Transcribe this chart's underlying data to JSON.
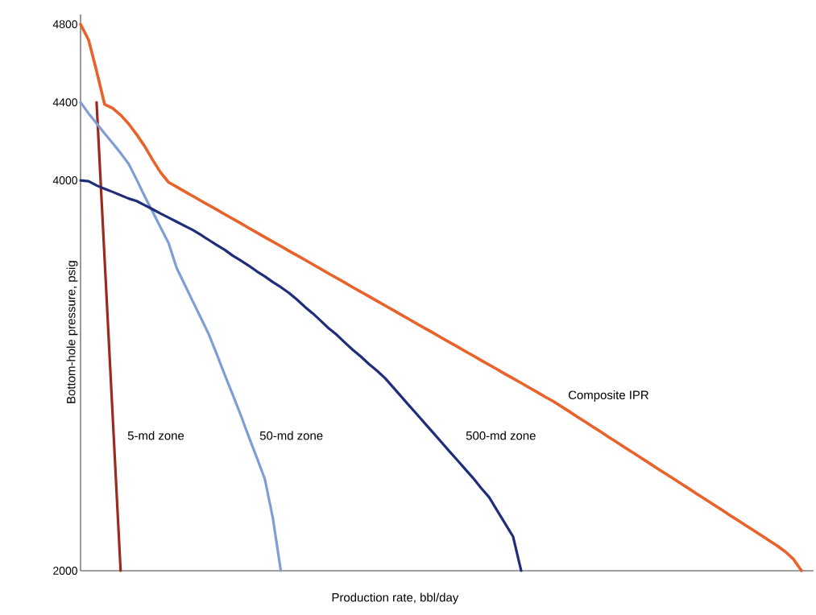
{
  "chart_data": {
    "type": "line",
    "xlabel": "Production rate, bbl/day",
    "ylabel": "Bottom-hole pressure, psig",
    "tick_labels": "y",
    "grid": false,
    "legend": false,
    "categories": [
      null,
      null,
      null,
      null,
      null,
      null,
      null,
      null,
      null,
      null,
      null,
      null,
      null,
      null,
      null,
      null,
      null,
      null,
      null,
      null,
      null,
      null,
      null,
      null,
      null,
      null,
      null,
      null,
      null,
      null,
      null,
      null,
      null,
      null,
      null,
      null,
      null,
      null,
      null,
      null,
      null,
      null,
      null,
      null,
      null,
      null,
      null,
      null,
      null,
      null,
      null,
      null,
      null,
      null,
      null,
      null,
      null,
      null,
      null,
      null,
      null,
      null,
      null,
      null,
      null,
      null,
      null,
      null,
      null,
      null,
      null,
      null,
      null,
      null,
      null,
      null,
      null,
      null,
      null,
      null,
      null,
      null,
      null,
      null,
      null,
      null,
      null,
      null,
      null,
      null,
      null
    ],
    "ylim": [
      2000,
      4850
    ],
    "yticks": [
      2000,
      4000,
      4400,
      4800
    ],
    "series": [
      {
        "name": "Composite IPR",
        "color": "#e8622a",
        "values": [
          4800,
          4720,
          4560,
          4390,
          4370,
          4335,
          4290,
          4235,
          4175,
          4105,
          4040,
          3990,
          3967,
          3943,
          3920,
          3896,
          3873,
          3850,
          3826,
          3803,
          3780,
          3756,
          3733,
          3709,
          3686,
          3663,
          3639,
          3616,
          3593,
          3569,
          3546,
          3522,
          3499,
          3476,
          3452,
          3429,
          3406,
          3382,
          3359,
          3336,
          3312,
          3289,
          3265,
          3242,
          3219,
          3195,
          3172,
          3149,
          3125,
          3102,
          3078,
          3055,
          3032,
          3008,
          2985,
          2962,
          2938,
          2915,
          2891,
          2868,
          2842,
          2816,
          2789,
          2763,
          2736,
          2710,
          2683,
          2657,
          2630,
          2604,
          2577,
          2551,
          2524,
          2498,
          2472,
          2445,
          2419,
          2392,
          2366,
          2339,
          2313,
          2286,
          2260,
          2233,
          2207,
          2180,
          2154,
          2127,
          2097,
          2059,
          2000
        ]
      },
      {
        "name": "5-md zone",
        "color": "#9b2b1e",
        "values": [
          null,
          null,
          4400,
          3600,
          2800,
          2000,
          null,
          null,
          null,
          null,
          null,
          null,
          null,
          null,
          null,
          null,
          null,
          null,
          null,
          null,
          null,
          null,
          null,
          null,
          null,
          null,
          null,
          null,
          null,
          null,
          null,
          null,
          null,
          null,
          null,
          null,
          null,
          null,
          null,
          null,
          null,
          null,
          null,
          null,
          null,
          null,
          null,
          null,
          null,
          null,
          null,
          null,
          null,
          null,
          null,
          null,
          null,
          null,
          null,
          null,
          null,
          null,
          null,
          null,
          null,
          null,
          null,
          null,
          null,
          null,
          null,
          null,
          null,
          null,
          null,
          null,
          null,
          null,
          null,
          null,
          null,
          null,
          null,
          null,
          null,
          null,
          null,
          null,
          null,
          null,
          null
        ]
      },
      {
        "name": "50-md zone",
        "color": "#7f9ed6",
        "values": [
          4400,
          4343,
          4292,
          4241,
          4191,
          4140,
          4085,
          4004,
          3919,
          3839,
          3758,
          3678,
          3551,
          3466,
          3381,
          3297,
          3212,
          3110,
          3004,
          2902,
          2797,
          2686,
          2580,
          2470,
          2271,
          2000,
          null,
          null,
          null,
          null,
          null,
          null,
          null,
          null,
          null,
          null,
          null,
          null,
          null,
          null,
          null,
          null,
          null,
          null,
          null,
          null,
          null,
          null,
          null,
          null,
          null,
          null,
          null,
          null,
          null,
          null,
          null,
          null,
          null,
          null,
          null,
          null,
          null,
          null,
          null,
          null,
          null,
          null,
          null,
          null,
          null,
          null,
          null,
          null,
          null,
          null,
          null,
          null,
          null,
          null,
          null,
          null,
          null,
          null,
          null,
          null,
          null,
          null,
          null,
          null,
          null
        ]
      },
      {
        "name": "500-md zone",
        "color": "#1f2d7b",
        "values": [
          4000,
          3996,
          3974,
          3957,
          3941,
          3924,
          3907,
          3894,
          3873,
          3852,
          3830,
          3809,
          3788,
          3767,
          3746,
          3721,
          3695,
          3669,
          3644,
          3614,
          3589,
          3563,
          3534,
          3508,
          3479,
          3453,
          3424,
          3390,
          3352,
          3318,
          3280,
          3241,
          3208,
          3169,
          3131,
          3097,
          3059,
          3025,
          2987,
          2941,
          2894,
          2847,
          2801,
          2754,
          2708,
          2661,
          2614,
          2568,
          2521,
          2475,
          2424,
          2377,
          2309,
          2242,
          2174,
          2000,
          null,
          null,
          null,
          null,
          null,
          null,
          null,
          null,
          null,
          null,
          null,
          null,
          null,
          null,
          null,
          null,
          null,
          null,
          null,
          null,
          null,
          null,
          null,
          null,
          null,
          null,
          null,
          null,
          null,
          null,
          null,
          null,
          null,
          null,
          null
        ]
      }
    ]
  }
}
